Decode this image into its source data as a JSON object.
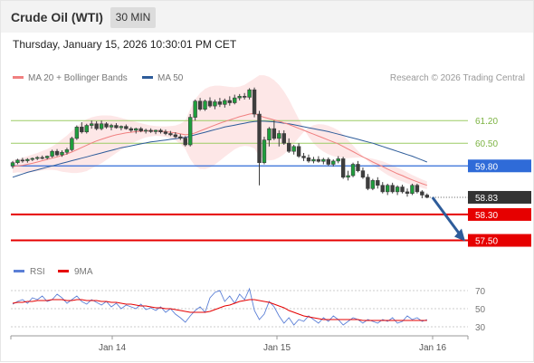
{
  "header": {
    "instrument": "Crude Oil (WTI)",
    "timeframe": "30 MIN"
  },
  "datetime": "Thursday, January 15, 2026 10:30:01 PM CET",
  "legend": {
    "ma20": {
      "label": "MA 20 + Bollinger Bands",
      "color": "#f08080"
    },
    "ma50": {
      "label": "MA 50",
      "color": "#2e5c9a"
    }
  },
  "credit": "Research © 2026 Trading Central",
  "rsi_legend": {
    "rsi": {
      "label": "RSI",
      "color": "#5b7fd6"
    },
    "ma9": {
      "label": "9MA",
      "color": "#e60000"
    }
  },
  "chart_data": {
    "type": "candlestick",
    "x_tick_labels": [
      "Jan 14",
      "Jan 15",
      "Jan 16"
    ],
    "price_ylim": [
      56.9,
      62.1
    ],
    "levels": [
      {
        "value": 61.2,
        "label": "61.20",
        "kind": "resistance",
        "color": "#9ccc65",
        "text_color": "#7cb342"
      },
      {
        "value": 60.5,
        "label": "60.50",
        "kind": "resistance",
        "color": "#9ccc65",
        "text_color": "#7cb342"
      },
      {
        "value": 59.8,
        "label": "59.80",
        "kind": "pivot",
        "color": "#2f6bd8"
      },
      {
        "value": 58.83,
        "label": "58.83",
        "kind": "last_price",
        "color": "#333333"
      },
      {
        "value": 58.3,
        "label": "58.30",
        "kind": "support",
        "color": "#e60000"
      },
      {
        "value": 57.5,
        "label": "57.50",
        "kind": "support",
        "color": "#e60000"
      }
    ],
    "projection": {
      "from": 58.83,
      "to": 57.5,
      "color": "#2e5c9a"
    },
    "candles": [
      [
        59.8,
        59.95,
        59.72,
        59.9
      ],
      [
        59.9,
        60.02,
        59.85,
        59.98
      ],
      [
        59.98,
        60.05,
        59.9,
        59.96
      ],
      [
        59.96,
        60.04,
        59.9,
        60.0
      ],
      [
        60.0,
        60.06,
        59.95,
        60.03
      ],
      [
        60.03,
        60.1,
        59.98,
        60.06
      ],
      [
        60.06,
        60.12,
        60.0,
        60.05
      ],
      [
        60.05,
        60.12,
        60.0,
        60.1
      ],
      [
        60.1,
        60.3,
        60.05,
        60.25
      ],
      [
        60.25,
        60.32,
        60.1,
        60.14
      ],
      [
        60.14,
        60.28,
        60.08,
        60.22
      ],
      [
        60.22,
        60.36,
        60.15,
        60.3
      ],
      [
        60.3,
        60.7,
        60.25,
        60.65
      ],
      [
        60.65,
        61.05,
        60.6,
        61.0
      ],
      [
        61.0,
        61.15,
        60.8,
        60.85
      ],
      [
        60.85,
        61.1,
        60.8,
        61.05
      ],
      [
        61.05,
        61.2,
        60.95,
        61.1
      ],
      [
        61.1,
        61.18,
        60.9,
        60.95
      ],
      [
        60.95,
        61.2,
        60.9,
        61.1
      ],
      [
        61.1,
        61.15,
        60.95,
        61.0
      ],
      [
        61.0,
        61.1,
        60.9,
        61.05
      ],
      [
        61.05,
        61.12,
        60.95,
        60.98
      ],
      [
        60.98,
        61.05,
        60.9,
        61.02
      ],
      [
        61.02,
        61.08,
        60.92,
        60.95
      ],
      [
        60.95,
        61.0,
        60.85,
        60.9
      ],
      [
        60.9,
        60.98,
        60.8,
        60.95
      ],
      [
        60.95,
        61.0,
        60.84,
        60.88
      ],
      [
        60.88,
        60.95,
        60.8,
        60.9
      ],
      [
        60.9,
        60.96,
        60.82,
        60.86
      ],
      [
        60.86,
        60.92,
        60.78,
        60.9
      ],
      [
        60.9,
        60.95,
        60.8,
        60.85
      ],
      [
        60.85,
        60.92,
        60.75,
        60.8
      ],
      [
        60.8,
        60.88,
        60.72,
        60.76
      ],
      [
        60.76,
        60.84,
        60.66,
        60.7
      ],
      [
        60.7,
        60.78,
        60.6,
        60.66
      ],
      [
        60.66,
        60.72,
        60.4,
        60.45
      ],
      [
        60.45,
        61.4,
        60.4,
        61.3
      ],
      [
        61.3,
        61.85,
        61.2,
        61.8
      ],
      [
        61.8,
        61.9,
        61.5,
        61.55
      ],
      [
        61.55,
        61.85,
        61.5,
        61.8
      ],
      [
        61.8,
        61.92,
        61.6,
        61.65
      ],
      [
        61.65,
        61.85,
        61.55,
        61.78
      ],
      [
        61.78,
        61.9,
        61.62,
        61.7
      ],
      [
        61.7,
        61.88,
        61.6,
        61.82
      ],
      [
        61.82,
        61.95,
        61.66,
        61.75
      ],
      [
        61.75,
        62.0,
        61.7,
        61.9
      ],
      [
        61.9,
        62.02,
        61.82,
        61.95
      ],
      [
        61.95,
        62.05,
        61.85,
        61.92
      ],
      [
        61.92,
        62.2,
        61.85,
        62.15
      ],
      [
        62.15,
        62.22,
        61.3,
        61.4
      ],
      [
        61.4,
        61.5,
        59.2,
        59.9
      ],
      [
        59.9,
        60.7,
        59.85,
        60.6
      ],
      [
        60.6,
        61.0,
        60.4,
        60.95
      ],
      [
        60.95,
        61.2,
        60.6,
        60.65
      ],
      [
        60.65,
        60.9,
        60.4,
        60.8
      ],
      [
        60.8,
        60.9,
        60.45,
        60.5
      ],
      [
        60.5,
        60.65,
        60.2,
        60.25
      ],
      [
        60.25,
        60.45,
        60.15,
        60.4
      ],
      [
        60.4,
        60.5,
        60.05,
        60.1
      ],
      [
        60.1,
        60.2,
        59.95,
        60.05
      ],
      [
        60.05,
        60.15,
        59.9,
        59.95
      ],
      [
        59.95,
        60.08,
        59.88,
        60.0
      ],
      [
        60.0,
        60.1,
        59.9,
        59.94
      ],
      [
        59.94,
        60.05,
        59.85,
        60.0
      ],
      [
        60.0,
        60.06,
        59.8,
        59.85
      ],
      [
        59.85,
        60.0,
        59.78,
        59.95
      ],
      [
        59.95,
        60.1,
        59.88,
        60.02
      ],
      [
        60.02,
        60.08,
        59.4,
        59.45
      ],
      [
        59.45,
        59.65,
        59.35,
        59.5
      ],
      [
        59.5,
        59.9,
        59.45,
        59.85
      ],
      [
        59.85,
        59.95,
        59.6,
        59.65
      ],
      [
        59.65,
        59.75,
        59.4,
        59.45
      ],
      [
        59.45,
        59.55,
        59.05,
        59.1
      ],
      [
        59.1,
        59.4,
        59.05,
        59.35
      ],
      [
        59.35,
        59.45,
        59.1,
        59.2
      ],
      [
        59.2,
        59.3,
        58.95,
        59.0
      ],
      [
        59.0,
        59.25,
        58.9,
        59.2
      ],
      [
        59.2,
        59.28,
        58.95,
        59.0
      ],
      [
        59.0,
        59.2,
        58.9,
        59.15
      ],
      [
        59.15,
        59.22,
        58.95,
        59.0
      ],
      [
        59.0,
        59.1,
        58.85,
        58.95
      ],
      [
        58.95,
        59.25,
        58.9,
        59.2
      ],
      [
        59.2,
        59.25,
        58.95,
        59.0
      ],
      [
        59.0,
        59.05,
        58.8,
        58.9
      ],
      [
        58.9,
        58.95,
        58.8,
        58.83
      ]
    ],
    "ma20": [
      59.78,
      59.8,
      59.82,
      59.85,
      59.88,
      59.92,
      59.96,
      60.0,
      60.04,
      60.08,
      60.12,
      60.17,
      60.23,
      60.3,
      60.37,
      60.44,
      60.51,
      60.57,
      60.62,
      60.67,
      60.72,
      60.76,
      60.79,
      60.82,
      60.84,
      60.86,
      60.87,
      60.88,
      60.88,
      60.88,
      60.87,
      60.86,
      60.84,
      60.82,
      60.79,
      60.76,
      60.78,
      60.82,
      60.88,
      60.94,
      61.0,
      61.06,
      61.12,
      61.17,
      61.22,
      61.27,
      61.32,
      61.36,
      61.4,
      61.42,
      61.35,
      61.3,
      61.26,
      61.22,
      61.18,
      61.13,
      61.08,
      61.02,
      60.96,
      60.9,
      60.84,
      60.78,
      60.72,
      60.66,
      60.6,
      60.54,
      60.48,
      60.4,
      60.32,
      60.24,
      60.16,
      60.08,
      60.0,
      59.92,
      59.85,
      59.78,
      59.7,
      59.63,
      59.56,
      59.5,
      59.43,
      59.37,
      59.31,
      59.25,
      59.2
    ],
    "ma50": [
      59.45,
      59.5,
      59.55,
      59.6,
      59.64,
      59.68,
      59.72,
      59.76,
      59.8,
      59.84,
      59.88,
      59.92,
      59.96,
      60.0,
      60.04,
      60.08,
      60.12,
      60.16,
      60.2,
      60.24,
      60.28,
      60.32,
      60.36,
      60.39,
      60.42,
      60.45,
      60.48,
      60.51,
      60.54,
      60.56,
      60.58,
      60.6,
      60.62,
      60.64,
      60.66,
      60.68,
      60.72,
      60.76,
      60.8,
      60.84,
      60.88,
      60.92,
      60.96,
      61.0,
      61.03,
      61.06,
      61.09,
      61.12,
      61.15,
      61.17,
      61.18,
      61.18,
      61.17,
      61.16,
      61.14,
      61.12,
      61.1,
      61.07,
      61.04,
      61.01,
      60.98,
      60.95,
      60.92,
      60.89,
      60.86,
      60.82,
      60.78,
      60.74,
      60.7,
      60.66,
      60.62,
      60.58,
      60.54,
      60.5,
      60.45,
      60.4,
      60.35,
      60.3,
      60.25,
      60.2,
      60.15,
      60.1,
      60.04,
      59.98,
      59.92
    ],
    "bb_upper": [
      59.98,
      60.0,
      60.05,
      60.1,
      60.15,
      60.2,
      60.26,
      60.32,
      60.4,
      60.5,
      60.62,
      60.74,
      60.88,
      61.02,
      61.14,
      61.24,
      61.3,
      61.34,
      61.36,
      61.36,
      61.35,
      61.32,
      61.28,
      61.24,
      61.2,
      61.16,
      61.12,
      61.08,
      61.05,
      61.03,
      61.02,
      61.02,
      61.03,
      61.05,
      61.1,
      61.2,
      61.55,
      61.85,
      62.05,
      62.18,
      62.25,
      62.28,
      62.28,
      62.26,
      62.24,
      62.23,
      62.25,
      62.3,
      62.4,
      62.5,
      62.6,
      62.6,
      62.55,
      62.45,
      62.3,
      62.1,
      61.85,
      61.55,
      61.25,
      60.95,
      60.7,
      60.5,
      60.35,
      60.24,
      60.16,
      60.1,
      60.06,
      60.04,
      60.04,
      60.05,
      60.06,
      60.06,
      60.05,
      60.02,
      59.98,
      59.94,
      59.88,
      59.82,
      59.75,
      59.68,
      59.6,
      59.52,
      59.45,
      59.38,
      59.32
    ],
    "bb_lower": [
      59.58,
      59.6,
      59.59,
      59.6,
      59.61,
      59.64,
      59.66,
      59.68,
      59.68,
      59.66,
      59.62,
      59.6,
      59.58,
      59.58,
      59.6,
      59.64,
      59.72,
      59.8,
      59.88,
      59.98,
      60.09,
      60.2,
      60.3,
      60.4,
      60.48,
      60.56,
      60.62,
      60.68,
      60.71,
      60.73,
      60.72,
      60.7,
      60.65,
      60.59,
      60.48,
      60.32,
      60.01,
      59.79,
      59.71,
      59.7,
      59.75,
      59.84,
      59.96,
      60.08,
      60.2,
      60.31,
      60.39,
      60.42,
      60.4,
      60.34,
      60.1,
      60.0,
      59.97,
      59.99,
      60.06,
      60.16,
      60.31,
      60.49,
      60.67,
      60.85,
      60.98,
      61.06,
      61.09,
      61.08,
      61.04,
      60.98,
      60.9,
      60.76,
      60.6,
      60.43,
      60.26,
      60.1,
      59.95,
      59.82,
      59.72,
      59.62,
      59.52,
      59.44,
      59.37,
      59.32,
      59.26,
      59.22,
      59.17,
      59.12,
      59.08
    ],
    "rsi": {
      "yticks": [
        30,
        50,
        70
      ],
      "ylim": [
        22,
        78
      ],
      "rsi_values": [
        55,
        58,
        60,
        56,
        62,
        60,
        64,
        58,
        60,
        66,
        62,
        56,
        60,
        64,
        58,
        55,
        60,
        57,
        54,
        58,
        52,
        56,
        50,
        54,
        52,
        50,
        55,
        49,
        51,
        48,
        52,
        46,
        50,
        44,
        40,
        35,
        42,
        48,
        52,
        46,
        62,
        68,
        70,
        58,
        64,
        56,
        66,
        60,
        72,
        48,
        38,
        44,
        58,
        52,
        42,
        34,
        40,
        32,
        38,
        36,
        42,
        38,
        34,
        40,
        36,
        42,
        38,
        32,
        36,
        40,
        38,
        34,
        38,
        36,
        34,
        38,
        36,
        40,
        34,
        36,
        42,
        38,
        40,
        36,
        38
      ],
      "ma9_values": [
        56,
        57,
        57,
        58,
        58,
        59,
        59,
        59,
        60,
        60,
        60,
        59,
        59,
        60,
        60,
        59,
        59,
        59,
        58,
        58,
        57,
        57,
        56,
        55,
        55,
        54,
        53,
        53,
        52,
        51,
        51,
        50,
        50,
        49,
        48,
        47,
        46,
        46,
        46,
        46,
        47,
        49,
        51,
        53,
        54,
        56,
        58,
        59,
        60,
        60,
        59,
        58,
        57,
        55,
        53,
        51,
        48,
        46,
        44,
        42,
        41,
        40,
        39,
        38,
        38,
        38,
        38,
        38,
        38,
        38,
        38,
        37,
        37,
        37,
        37,
        37,
        37,
        37,
        37,
        37,
        37,
        37,
        37,
        37,
        37
      ]
    }
  }
}
